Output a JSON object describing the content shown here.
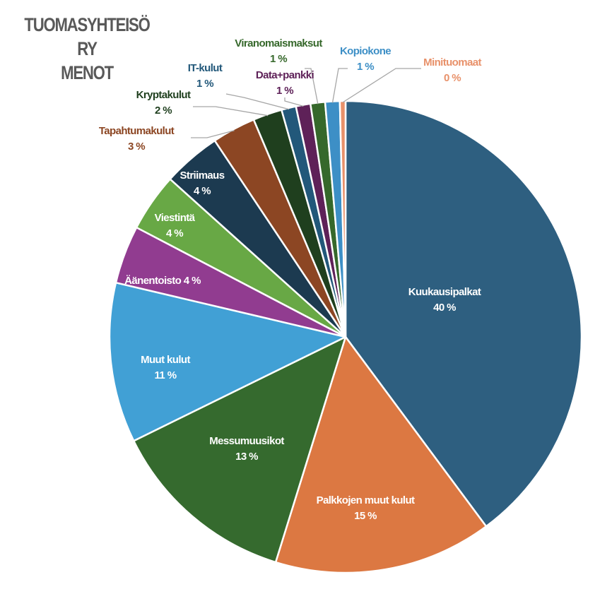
{
  "chart_data": {
    "type": "pie",
    "title_lines": [
      "TUOMASYHTEISÖ RY",
      "MENOT"
    ],
    "slices": [
      {
        "name": "Kuukausipalkat",
        "value": 40,
        "label": "40 %",
        "color": "#2e5f80",
        "placement": "inside"
      },
      {
        "name": "Palkkojen muut kulut",
        "value": 15,
        "label": "15 %",
        "color": "#dc7842",
        "placement": "inside"
      },
      {
        "name": "Messumuusikot",
        "value": 13,
        "label": "13 %",
        "color": "#356a2e",
        "placement": "inside"
      },
      {
        "name": "Muut kulut",
        "value": 11,
        "label": "11 %",
        "color": "#41a0d5",
        "placement": "inside"
      },
      {
        "name": "Äänentoisto",
        "value": 4,
        "label": "4 %",
        "color": "#913c90",
        "placement": "inside",
        "inline": true
      },
      {
        "name": "Viestintä",
        "value": 4,
        "label": "4 %",
        "color": "#68a845",
        "placement": "inside"
      },
      {
        "name": "Striimaus",
        "value": 4,
        "label": "4 %",
        "color": "#1c3a50",
        "placement": "inside"
      },
      {
        "name": "Tapahtumakulut",
        "value": 3,
        "label": "3 %",
        "color": "#8c4623",
        "placement": "outside",
        "text_color": "#8c4623"
      },
      {
        "name": "Kryptakulut",
        "value": 2,
        "label": "2 %",
        "color": "#1f3f1e",
        "placement": "outside",
        "text_color": "#1f3f1e"
      },
      {
        "name": "IT-kulut",
        "value": 1,
        "label": "1 %",
        "color": "#22587a",
        "placement": "outside",
        "text_color": "#22587a"
      },
      {
        "name": "Data+pankki",
        "value": 1,
        "label": "1 %",
        "color": "#5e2158",
        "placement": "outside",
        "text_color": "#5e2158"
      },
      {
        "name": "Viranomaismaksut",
        "value": 1,
        "label": "1 %",
        "color": "#36682b",
        "placement": "outside",
        "text_color": "#36682b"
      },
      {
        "name": "Kopiokone",
        "value": 1,
        "label": "1 %",
        "color": "#3d8fc6",
        "placement": "outside",
        "text_color": "#3d8fc6"
      },
      {
        "name": "Minituomaat",
        "value": 0,
        "label": "0 %",
        "color": "#e8916a",
        "placement": "outside",
        "text_color": "#e8916a"
      }
    ],
    "legend": "none"
  }
}
